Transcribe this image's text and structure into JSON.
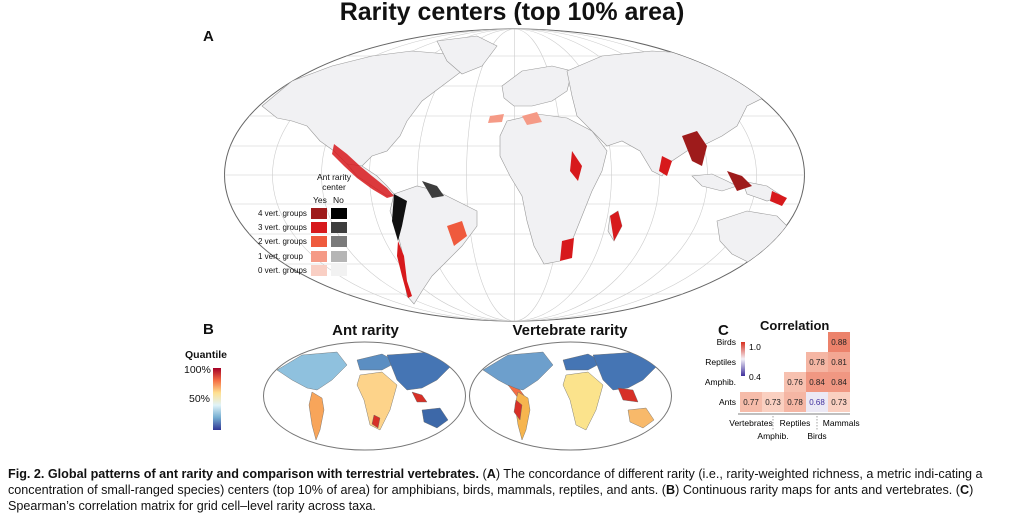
{
  "figure": {
    "main_title": "Rarity centers (top 10% area)",
    "panel_a_label": "A",
    "panel_b_label": "B",
    "panel_c_label": "C"
  },
  "legend_a": {
    "header_line1": "Ant rarity",
    "header_line2": "center",
    "col_yes": "Yes",
    "col_no": "No",
    "rows": [
      {
        "label": "4 vert. groups",
        "yes_color": "#9e1b1b",
        "no_color": "#000000"
      },
      {
        "label": "3 vert. groups",
        "yes_color": "#d7191c",
        "no_color": "#3d3d3d"
      },
      {
        "label": "2 vert. groups",
        "yes_color": "#ef5a3d",
        "no_color": "#7a7a7a"
      },
      {
        "label": "1 vert. group",
        "yes_color": "#f59a86",
        "no_color": "#b5b5b5"
      },
      {
        "label": "0 vert. groups",
        "yes_color": "#f9cfc4",
        "no_color": "#f2f2f2"
      }
    ]
  },
  "panel_b": {
    "ant_title": "Ant rarity",
    "vert_title": "Vertebrate rarity",
    "quantile_title": "Quantile",
    "q_top": "100%",
    "q_mid": "50%"
  },
  "chart_data": {
    "type": "heatmap",
    "title": "Correlation",
    "rows": [
      "Birds",
      "Reptiles",
      "Amphib.",
      "Ants"
    ],
    "columns": [
      "Vertebrates",
      "Amphib.",
      "Reptiles",
      "Birds",
      "Mammals"
    ],
    "values": [
      [
        null,
        null,
        null,
        null,
        0.88
      ],
      [
        null,
        null,
        null,
        0.78,
        0.81
      ],
      [
        null,
        null,
        0.76,
        0.84,
        0.84
      ],
      [
        0.77,
        0.73,
        0.78,
        0.68,
        0.73
      ]
    ],
    "colorbar": {
      "max_label": "1.0",
      "min_label": "0.4",
      "high_color": "#d7301f",
      "low_color": "#3f2f9c"
    },
    "x_labels_upper": [
      "Vertebrates",
      "Reptiles",
      "Mammals"
    ],
    "x_labels_lower": [
      "Amphib.",
      "Birds"
    ]
  },
  "caption": {
    "bold_lead": "Fig. 2. Global patterns of ant rarity and comparison with terrestrial vertebrates.",
    "part_a_label": "A",
    "part_a_text": "The concordance of different rarity (i.e., rarity-weighted richness, a metric indi-cating a concentration of small-ranged species) centers (top 10% of area) for amphibians, birds, mammals, reptiles, and ants.",
    "part_b_label": "B",
    "part_b_text": "Continuous rarity maps for ants and vertebrates.",
    "part_c_label": "C",
    "part_c_text": "Spearman’s correlation matrix for grid cell–level rarity across taxa."
  }
}
